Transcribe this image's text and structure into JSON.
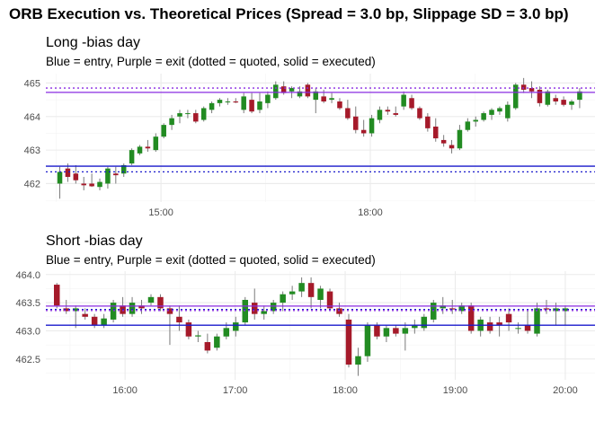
{
  "title": "ORB Execution vs. Theoretical Prices (Spread = 3.0 bp, Slippage SD = 3.0 bp)",
  "colors": {
    "up": "#228B22",
    "down": "#A51A2A",
    "wick": "#7a7a7a",
    "entry": "#1a1acc",
    "exit": "#8a2be2",
    "grid": "#ebebeb"
  },
  "chart_data": [
    {
      "type": "candlestick",
      "title": "Long -bias day",
      "subtitle": "Blue = entry, Purple = exit (dotted = quoted, solid = executed)",
      "xlabel": "",
      "ylabel": "",
      "x_unit": "time (hours)",
      "xlim": [
        13.35,
        21.22
      ],
      "ylim": [
        461.45,
        465.28
      ],
      "x_ticks": [
        {
          "v": 15,
          "label": "15:00"
        },
        {
          "v": 18,
          "label": "18:00"
        }
      ],
      "y_ticks": [
        {
          "v": 462,
          "label": "462"
        },
        {
          "v": 463,
          "label": "463"
        },
        {
          "v": 464,
          "label": "464"
        },
        {
          "v": 465,
          "label": "465"
        }
      ],
      "grid": true,
      "levels": {
        "entry_quoted": 462.35,
        "entry_executed": 462.52,
        "exit_quoted": 464.85,
        "exit_executed": 464.72
      },
      "candles": [
        {
          "o": 462.0,
          "h": 462.5,
          "l": 461.55,
          "c": 462.35
        },
        {
          "o": 462.45,
          "h": 462.6,
          "l": 462.05,
          "c": 462.2
        },
        {
          "o": 462.3,
          "h": 462.55,
          "l": 462.0,
          "c": 462.1
        },
        {
          "o": 462.0,
          "h": 462.2,
          "l": 461.8,
          "c": 461.95
        },
        {
          "o": 462.0,
          "h": 462.3,
          "l": 461.9,
          "c": 461.92
        },
        {
          "o": 461.9,
          "h": 462.15,
          "l": 461.8,
          "c": 462.05
        },
        {
          "o": 462.0,
          "h": 462.5,
          "l": 461.85,
          "c": 462.45
        },
        {
          "o": 462.3,
          "h": 462.5,
          "l": 462.0,
          "c": 462.25
        },
        {
          "o": 462.3,
          "h": 462.6,
          "l": 462.2,
          "c": 462.55
        },
        {
          "o": 462.6,
          "h": 463.05,
          "l": 462.55,
          "c": 463.0
        },
        {
          "o": 462.9,
          "h": 463.15,
          "l": 462.85,
          "c": 463.1
        },
        {
          "o": 463.1,
          "h": 463.3,
          "l": 462.95,
          "c": 463.05
        },
        {
          "o": 463.0,
          "h": 463.5,
          "l": 462.95,
          "c": 463.4
        },
        {
          "o": 463.4,
          "h": 463.8,
          "l": 463.35,
          "c": 463.75
        },
        {
          "o": 463.75,
          "h": 464.05,
          "l": 463.6,
          "c": 463.95
        },
        {
          "o": 464.0,
          "h": 464.2,
          "l": 463.8,
          "c": 464.1
        },
        {
          "o": 464.1,
          "h": 464.2,
          "l": 463.95,
          "c": 464.1
        },
        {
          "o": 464.1,
          "h": 464.2,
          "l": 463.8,
          "c": 463.85
        },
        {
          "o": 463.9,
          "h": 464.3,
          "l": 463.85,
          "c": 464.25
        },
        {
          "o": 464.2,
          "h": 464.45,
          "l": 464.1,
          "c": 464.4
        },
        {
          "o": 464.4,
          "h": 464.55,
          "l": 464.3,
          "c": 464.5
        },
        {
          "o": 464.45,
          "h": 464.55,
          "l": 464.35,
          "c": 464.45
        },
        {
          "o": 464.45,
          "h": 464.55,
          "l": 464.4,
          "c": 464.42
        },
        {
          "o": 464.2,
          "h": 464.7,
          "l": 464.1,
          "c": 464.6
        },
        {
          "o": 464.5,
          "h": 464.7,
          "l": 464.1,
          "c": 464.15
        },
        {
          "o": 464.2,
          "h": 464.7,
          "l": 464.1,
          "c": 464.45
        },
        {
          "o": 464.4,
          "h": 464.75,
          "l": 464.25,
          "c": 464.65
        },
        {
          "o": 464.55,
          "h": 465.05,
          "l": 464.5,
          "c": 464.95
        },
        {
          "o": 464.9,
          "h": 465.05,
          "l": 464.65,
          "c": 464.7
        },
        {
          "o": 464.75,
          "h": 464.9,
          "l": 464.55,
          "c": 464.85
        },
        {
          "o": 464.6,
          "h": 464.9,
          "l": 464.55,
          "c": 464.75
        },
        {
          "o": 464.95,
          "h": 465.0,
          "l": 464.55,
          "c": 464.6
        },
        {
          "o": 464.5,
          "h": 464.85,
          "l": 464.1,
          "c": 464.75
        },
        {
          "o": 464.6,
          "h": 464.8,
          "l": 464.4,
          "c": 464.45
        },
        {
          "o": 464.5,
          "h": 464.7,
          "l": 464.4,
          "c": 464.55
        },
        {
          "o": 464.45,
          "h": 464.55,
          "l": 464.2,
          "c": 464.25
        },
        {
          "o": 464.25,
          "h": 464.5,
          "l": 463.9,
          "c": 463.95
        },
        {
          "o": 464.0,
          "h": 464.3,
          "l": 463.5,
          "c": 463.6
        },
        {
          "o": 463.6,
          "h": 463.9,
          "l": 463.4,
          "c": 463.5
        },
        {
          "o": 463.5,
          "h": 464.05,
          "l": 463.4,
          "c": 463.95
        },
        {
          "o": 463.9,
          "h": 464.3,
          "l": 463.8,
          "c": 464.2
        },
        {
          "o": 464.2,
          "h": 464.3,
          "l": 464.05,
          "c": 464.15
        },
        {
          "o": 464.1,
          "h": 464.3,
          "l": 464.0,
          "c": 464.05
        },
        {
          "o": 464.3,
          "h": 464.75,
          "l": 464.2,
          "c": 464.65
        },
        {
          "o": 464.55,
          "h": 464.65,
          "l": 464.2,
          "c": 464.25
        },
        {
          "o": 464.25,
          "h": 464.3,
          "l": 463.9,
          "c": 463.95
        },
        {
          "o": 464.0,
          "h": 464.1,
          "l": 463.55,
          "c": 463.65
        },
        {
          "o": 463.7,
          "h": 463.95,
          "l": 463.25,
          "c": 463.35
        },
        {
          "o": 463.3,
          "h": 463.45,
          "l": 463.1,
          "c": 463.2
        },
        {
          "o": 463.15,
          "h": 463.3,
          "l": 462.9,
          "c": 463.05
        },
        {
          "o": 463.05,
          "h": 463.75,
          "l": 463.0,
          "c": 463.6
        },
        {
          "o": 463.6,
          "h": 463.95,
          "l": 463.55,
          "c": 463.85
        },
        {
          "o": 463.85,
          "h": 464.0,
          "l": 463.7,
          "c": 463.9
        },
        {
          "o": 463.9,
          "h": 464.15,
          "l": 463.85,
          "c": 464.1
        },
        {
          "o": 464.05,
          "h": 464.25,
          "l": 463.9,
          "c": 464.2
        },
        {
          "o": 464.15,
          "h": 464.3,
          "l": 464.05,
          "c": 464.25
        },
        {
          "o": 463.95,
          "h": 464.45,
          "l": 463.85,
          "c": 464.35
        },
        {
          "o": 464.25,
          "h": 465.0,
          "l": 464.2,
          "c": 464.95
        },
        {
          "o": 464.95,
          "h": 465.15,
          "l": 464.7,
          "c": 464.8
        },
        {
          "o": 464.85,
          "h": 465.05,
          "l": 464.55,
          "c": 464.75
        },
        {
          "o": 464.8,
          "h": 464.9,
          "l": 464.3,
          "c": 464.4
        },
        {
          "o": 464.35,
          "h": 464.8,
          "l": 464.3,
          "c": 464.75
        },
        {
          "o": 464.55,
          "h": 464.65,
          "l": 464.35,
          "c": 464.45
        },
        {
          "o": 464.5,
          "h": 464.6,
          "l": 464.3,
          "c": 464.35
        },
        {
          "o": 464.35,
          "h": 464.5,
          "l": 464.2,
          "c": 464.45
        },
        {
          "o": 464.5,
          "h": 464.85,
          "l": 464.25,
          "c": 464.75
        }
      ]
    },
    {
      "type": "candlestick",
      "title": "Short -bias day",
      "subtitle": "Blue = entry, Purple = exit (dotted = quoted, solid = executed)",
      "xlabel": "",
      "ylabel": "",
      "x_unit": "time (hours)",
      "xlim": [
        15.28,
        20.27
      ],
      "ylim": [
        462.13,
        464.06
      ],
      "x_ticks": [
        {
          "v": 16,
          "label": "16:00"
        },
        {
          "v": 17,
          "label": "17:00"
        },
        {
          "v": 18,
          "label": "18:00"
        },
        {
          "v": 19,
          "label": "19:00"
        },
        {
          "v": 20,
          "label": "20:00"
        }
      ],
      "y_ticks": [
        {
          "v": 462.5,
          "label": "462.5"
        },
        {
          "v": 463,
          "label": "463.0"
        },
        {
          "v": 463.5,
          "label": "463.5"
        },
        {
          "v": 464,
          "label": "464.0"
        }
      ],
      "grid": true,
      "levels": {
        "entry_quoted": 463.38,
        "entry_executed": 463.1,
        "exit_quoted": 463.36,
        "exit_executed": 463.44
      },
      "candles": [
        {
          "o": 463.82,
          "h": 463.85,
          "l": 463.4,
          "c": 463.45
        },
        {
          "o": 463.4,
          "h": 463.55,
          "l": 463.3,
          "c": 463.35
        },
        {
          "o": 463.35,
          "h": 463.45,
          "l": 463.05,
          "c": 463.4
        },
        {
          "o": 463.3,
          "h": 463.4,
          "l": 463.2,
          "c": 463.25
        },
        {
          "o": 463.25,
          "h": 463.3,
          "l": 463.05,
          "c": 463.1
        },
        {
          "o": 463.1,
          "h": 463.3,
          "l": 463.05,
          "c": 463.22
        },
        {
          "o": 463.2,
          "h": 463.55,
          "l": 463.15,
          "c": 463.5
        },
        {
          "o": 463.45,
          "h": 463.6,
          "l": 463.25,
          "c": 463.3
        },
        {
          "o": 463.3,
          "h": 463.6,
          "l": 463.25,
          "c": 463.5
        },
        {
          "o": 463.45,
          "h": 463.55,
          "l": 463.3,
          "c": 463.4
        },
        {
          "o": 463.5,
          "h": 463.65,
          "l": 463.45,
          "c": 463.6
        },
        {
          "o": 463.6,
          "h": 463.65,
          "l": 463.35,
          "c": 463.4
        },
        {
          "o": 463.4,
          "h": 463.45,
          "l": 462.75,
          "c": 463.3
        },
        {
          "o": 463.25,
          "h": 463.45,
          "l": 463.0,
          "c": 463.15
        },
        {
          "o": 463.15,
          "h": 463.2,
          "l": 462.85,
          "c": 462.9
        },
        {
          "o": 462.9,
          "h": 463.0,
          "l": 462.8,
          "c": 462.92
        },
        {
          "o": 462.8,
          "h": 462.95,
          "l": 462.6,
          "c": 462.65
        },
        {
          "o": 462.7,
          "h": 462.95,
          "l": 462.65,
          "c": 462.9
        },
        {
          "o": 462.9,
          "h": 463.15,
          "l": 462.85,
          "c": 463.05
        },
        {
          "o": 463.0,
          "h": 463.25,
          "l": 462.9,
          "c": 463.15
        },
        {
          "o": 463.15,
          "h": 463.6,
          "l": 463.1,
          "c": 463.55
        },
        {
          "o": 463.5,
          "h": 463.75,
          "l": 463.2,
          "c": 463.3
        },
        {
          "o": 463.3,
          "h": 463.45,
          "l": 463.2,
          "c": 463.35
        },
        {
          "o": 463.35,
          "h": 463.55,
          "l": 463.3,
          "c": 463.5
        },
        {
          "o": 463.5,
          "h": 463.7,
          "l": 463.35,
          "c": 463.65
        },
        {
          "o": 463.65,
          "h": 463.8,
          "l": 463.55,
          "c": 463.7
        },
        {
          "o": 463.7,
          "h": 463.95,
          "l": 463.6,
          "c": 463.85
        },
        {
          "o": 463.85,
          "h": 463.95,
          "l": 463.4,
          "c": 463.6
        },
        {
          "o": 463.55,
          "h": 463.8,
          "l": 463.4,
          "c": 463.75
        },
        {
          "o": 463.7,
          "h": 463.75,
          "l": 463.35,
          "c": 463.4
        },
        {
          "o": 463.4,
          "h": 463.5,
          "l": 463.25,
          "c": 463.3
        },
        {
          "o": 463.2,
          "h": 463.3,
          "l": 462.35,
          "c": 462.4
        },
        {
          "o": 462.4,
          "h": 462.7,
          "l": 462.2,
          "c": 462.55
        },
        {
          "o": 462.55,
          "h": 463.15,
          "l": 462.45,
          "c": 463.1
        },
        {
          "o": 463.1,
          "h": 463.15,
          "l": 462.85,
          "c": 462.9
        },
        {
          "o": 462.9,
          "h": 463.1,
          "l": 462.8,
          "c": 463.05
        },
        {
          "o": 463.05,
          "h": 463.1,
          "l": 462.9,
          "c": 462.95
        },
        {
          "o": 462.95,
          "h": 463.15,
          "l": 462.65,
          "c": 463.05
        },
        {
          "o": 463.05,
          "h": 463.2,
          "l": 462.95,
          "c": 463.1
        },
        {
          "o": 463.05,
          "h": 463.3,
          "l": 463.0,
          "c": 463.25
        },
        {
          "o": 463.2,
          "h": 463.55,
          "l": 463.15,
          "c": 463.5
        },
        {
          "o": 463.4,
          "h": 463.6,
          "l": 463.3,
          "c": 463.45
        },
        {
          "o": 463.4,
          "h": 463.55,
          "l": 463.3,
          "c": 463.38
        },
        {
          "o": 463.35,
          "h": 463.5,
          "l": 463.3,
          "c": 463.45
        },
        {
          "o": 463.45,
          "h": 463.5,
          "l": 462.95,
          "c": 463.0
        },
        {
          "o": 463.0,
          "h": 463.25,
          "l": 462.9,
          "c": 463.2
        },
        {
          "o": 463.15,
          "h": 463.25,
          "l": 462.95,
          "c": 463.0
        },
        {
          "o": 463.15,
          "h": 463.25,
          "l": 462.9,
          "c": 463.1
        },
        {
          "o": 463.3,
          "h": 463.4,
          "l": 463.0,
          "c": 463.15
        },
        {
          "o": 463.05,
          "h": 463.15,
          "l": 462.95,
          "c": 463.05
        },
        {
          "o": 463.1,
          "h": 463.35,
          "l": 462.95,
          "c": 463.0
        },
        {
          "o": 462.95,
          "h": 463.5,
          "l": 462.9,
          "c": 463.4
        },
        {
          "o": 463.4,
          "h": 463.55,
          "l": 463.3,
          "c": 463.38
        },
        {
          "o": 463.35,
          "h": 463.5,
          "l": 463.1,
          "c": 463.4
        },
        {
          "o": 463.35,
          "h": 463.45,
          "l": 463.1,
          "c": 463.4
        }
      ]
    }
  ]
}
